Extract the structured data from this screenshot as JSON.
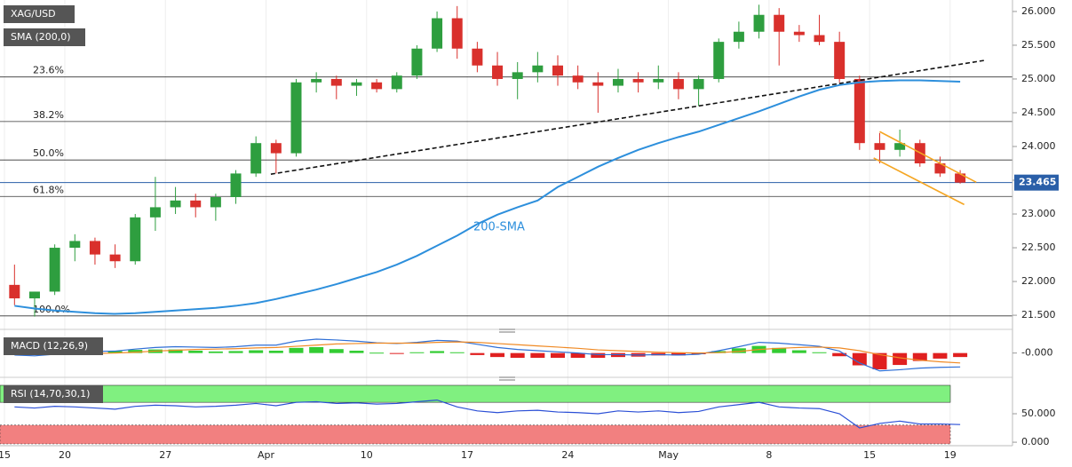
{
  "chart_data": [
    {
      "type": "candlestick",
      "title": "XAG/USD",
      "indicator": "SMA (200,0)",
      "sma_label": "200-SMA",
      "xlim": [
        0,
        50.1
      ],
      "xticks": [
        {
          "value": 0,
          "label": "15"
        },
        {
          "value": 3,
          "label": "20"
        },
        {
          "value": 8,
          "label": "27"
        },
        {
          "value": 13,
          "label": "Apr"
        },
        {
          "value": 18,
          "label": "10"
        },
        {
          "value": 23,
          "label": "17"
        },
        {
          "value": 28,
          "label": "24"
        },
        {
          "value": 33,
          "label": "May"
        },
        {
          "value": 38,
          "label": "8"
        },
        {
          "value": 43,
          "label": "15"
        },
        {
          "value": 47,
          "label": "19"
        }
      ],
      "ylim": [
        21.33,
        26.17
      ],
      "yticks": [
        {
          "value": 26,
          "label": "26.000"
        },
        {
          "value": 25.5,
          "label": "25.500"
        },
        {
          "value": 25,
          "label": "25.000"
        },
        {
          "value": 24.5,
          "label": "24.500"
        },
        {
          "value": 24,
          "label": "24.000"
        },
        {
          "value": 23.5,
          "label": "23.500"
        },
        {
          "value": 23,
          "label": "23.000"
        },
        {
          "value": 22.5,
          "label": "22.500"
        },
        {
          "value": 22,
          "label": "22.000"
        },
        {
          "value": 21.5,
          "label": "21.500"
        }
      ],
      "up_color": "#2e9e3f",
      "down_color": "#d9302c",
      "sma_color": "#2d8fdc",
      "open": [
        21.95,
        21.75,
        21.85,
        22.5,
        22.6,
        22.4,
        22.3,
        22.95,
        23.1,
        23.2,
        23.1,
        23.25,
        23.6,
        24.05,
        23.9,
        24.95,
        25.0,
        24.9,
        24.95,
        24.85,
        25.05,
        25.45,
        25.9,
        25.45,
        25.2,
        25.0,
        25.1,
        25.2,
        25.05,
        24.95,
        24.9,
        25.0,
        24.95,
        25.0,
        24.85,
        25.0,
        25.55,
        25.7,
        25.95,
        25.7,
        25.65,
        25.55,
        25.0,
        24.05,
        23.95,
        24.05,
        23.75,
        23.6
      ],
      "high": [
        22.25,
        21.85,
        22.55,
        22.7,
        22.65,
        22.55,
        23.0,
        23.55,
        23.4,
        23.3,
        23.3,
        23.65,
        24.15,
        24.1,
        25.0,
        25.1,
        25.05,
        25.0,
        25.0,
        25.1,
        25.5,
        26.0,
        26.08,
        25.55,
        25.4,
        25.25,
        25.4,
        25.35,
        25.2,
        25.1,
        25.15,
        25.1,
        25.2,
        25.1,
        25.05,
        25.6,
        25.85,
        26.1,
        26.05,
        25.8,
        25.95,
        25.7,
        25.05,
        24.2,
        24.25,
        24.1,
        23.85,
        23.65
      ],
      "low": [
        21.65,
        21.48,
        21.8,
        22.3,
        22.25,
        22.2,
        22.25,
        22.75,
        23.0,
        22.95,
        22.9,
        23.15,
        23.55,
        23.6,
        23.85,
        24.8,
        24.7,
        24.75,
        24.8,
        24.8,
        25.0,
        25.4,
        25.3,
        25.1,
        24.9,
        24.7,
        24.95,
        24.9,
        24.85,
        24.5,
        24.8,
        24.8,
        24.85,
        24.7,
        24.6,
        24.95,
        25.45,
        25.6,
        25.2,
        25.55,
        25.5,
        24.95,
        23.95,
        23.75,
        23.85,
        23.7,
        23.55,
        23.45
      ],
      "close": [
        21.75,
        21.85,
        22.5,
        22.6,
        22.4,
        22.3,
        22.95,
        23.1,
        23.2,
        23.1,
        23.25,
        23.6,
        24.05,
        23.9,
        24.95,
        25.0,
        24.9,
        24.95,
        24.85,
        25.05,
        25.45,
        25.9,
        25.45,
        25.2,
        25.0,
        25.1,
        25.2,
        25.05,
        24.95,
        24.9,
        25.0,
        24.95,
        25.0,
        24.85,
        25.0,
        25.55,
        25.7,
        25.95,
        25.7,
        25.65,
        25.55,
        25.0,
        24.05,
        23.95,
        24.05,
        23.75,
        23.6,
        23.465
      ],
      "sma": [
        21.64,
        21.6,
        21.57,
        21.55,
        21.53,
        21.52,
        21.53,
        21.55,
        21.57,
        21.59,
        21.61,
        21.64,
        21.68,
        21.74,
        21.81,
        21.88,
        21.96,
        22.05,
        22.14,
        22.25,
        22.38,
        22.53,
        22.68,
        22.85,
        22.99,
        23.1,
        23.2,
        23.4,
        23.55,
        23.7,
        23.83,
        23.95,
        24.05,
        24.14,
        24.22,
        24.32,
        24.42,
        24.52,
        24.63,
        24.74,
        24.84,
        24.91,
        24.95,
        24.97,
        24.98,
        24.98,
        24.97,
        24.96
      ],
      "last_price": {
        "value": 23.465,
        "label": "23.465"
      },
      "last_price_color": "#2a5fa8",
      "fib_levels": [
        {
          "label": "23.6%",
          "value": 25.03
        },
        {
          "label": "38.2%",
          "value": 24.37
        },
        {
          "label": "50.0%",
          "value": 23.8
        },
        {
          "label": "61.8%",
          "value": 23.26
        },
        {
          "label": "100.0%",
          "value": 21.49
        }
      ],
      "trend_lines": [
        {
          "x": [
            13.24,
            48.8
          ],
          "y": [
            23.59,
            25.28
          ],
          "color": "#111111",
          "dashed": true
        },
        {
          "x": [
            43.5,
            48.3
          ],
          "y": [
            24.22,
            23.47
          ],
          "color": "#f5a623",
          "dashed": false
        },
        {
          "x": [
            43.2,
            47.7
          ],
          "y": [
            23.83,
            23.14
          ],
          "color": "#f5a623",
          "dashed": false
        }
      ]
    },
    {
      "type": "macd",
      "title": "MACD (12,26,9)",
      "ylim": [
        -0.5,
        0.44
      ],
      "yticks": [
        {
          "value": 0,
          "label": "-0.000"
        }
      ],
      "macd_color": "#2f6fd6",
      "signal_color": "#f08a24",
      "hist_up_color": "#33cc33",
      "hist_down_color": "#e02020",
      "macd": [
        -0.05,
        -0.07,
        -0.03,
        0.02,
        0.04,
        0.05,
        0.1,
        0.14,
        0.16,
        0.15,
        0.14,
        0.16,
        0.2,
        0.2,
        0.3,
        0.35,
        0.33,
        0.3,
        0.26,
        0.24,
        0.27,
        0.32,
        0.3,
        0.22,
        0.14,
        0.09,
        0.06,
        0.03,
        0.0,
        -0.04,
        -0.04,
        -0.05,
        -0.04,
        -0.05,
        -0.03,
        0.06,
        0.16,
        0.27,
        0.25,
        0.21,
        0.17,
        0.05,
        -0.25,
        -0.45,
        -0.42,
        -0.38,
        -0.36,
        -0.35
      ],
      "signal": [
        -0.03,
        -0.04,
        -0.04,
        -0.03,
        -0.01,
        0.0,
        0.02,
        0.05,
        0.07,
        0.09,
        0.1,
        0.11,
        0.13,
        0.14,
        0.17,
        0.2,
        0.23,
        0.24,
        0.25,
        0.25,
        0.25,
        0.27,
        0.28,
        0.27,
        0.24,
        0.21,
        0.18,
        0.15,
        0.12,
        0.08,
        0.06,
        0.04,
        0.02,
        0.01,
        0.0,
        0.01,
        0.04,
        0.09,
        0.12,
        0.14,
        0.15,
        0.13,
        0.06,
        -0.04,
        -0.12,
        -0.18,
        -0.22,
        -0.25
      ],
      "histogram": [
        -0.02,
        -0.03,
        0.01,
        0.05,
        0.05,
        0.05,
        0.08,
        0.09,
        0.09,
        0.06,
        0.04,
        0.05,
        0.07,
        0.06,
        0.13,
        0.15,
        0.1,
        0.06,
        0.01,
        -0.01,
        0.02,
        0.05,
        0.02,
        -0.05,
        -0.1,
        -0.12,
        -0.12,
        -0.12,
        -0.12,
        -0.12,
        -0.1,
        -0.09,
        -0.06,
        -0.06,
        -0.03,
        0.05,
        0.12,
        0.18,
        0.13,
        0.07,
        0.02,
        -0.08,
        -0.31,
        -0.41,
        -0.3,
        -0.2,
        -0.14,
        -0.1
      ]
    },
    {
      "type": "rsi",
      "title": "RSI (14,70,30,1)",
      "ylim": [
        -3,
        103
      ],
      "yticks": [
        {
          "value": 50,
          "label": "50.000"
        },
        {
          "value": 0,
          "label": "0.000"
        }
      ],
      "overbought": 70,
      "oversold": 30,
      "color": "#2b4fd6",
      "overbought_color": "#80f080",
      "oversold_color": "#f28080",
      "values": [
        62,
        60,
        63,
        62,
        60,
        58,
        63,
        65,
        64,
        62,
        63,
        65,
        68,
        64,
        70,
        71,
        68,
        69,
        67,
        68,
        71,
        74,
        62,
        55,
        52,
        55,
        56,
        53,
        52,
        50,
        55,
        53,
        55,
        52,
        54,
        62,
        66,
        70,
        62,
        60,
        59,
        50,
        25,
        33,
        37,
        32,
        32,
        31
      ]
    }
  ]
}
